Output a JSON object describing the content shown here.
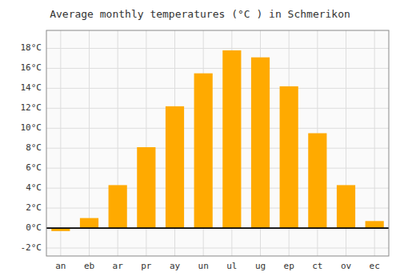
{
  "chart_data": {
    "type": "bar",
    "title": "Average monthly temperatures (°C ) in Schmerikon",
    "categories": [
      "an",
      "eb",
      "ar",
      "pr",
      "ay",
      "un",
      "ul",
      "ug",
      "ep",
      "ct",
      "ov",
      "ec"
    ],
    "values": [
      -0.3,
      1.0,
      4.3,
      8.1,
      12.2,
      15.5,
      17.8,
      17.1,
      14.2,
      9.5,
      4.3,
      0.7
    ],
    "color": "#FFAA00",
    "ylim": [
      -2.8,
      19.8
    ],
    "yticks": [
      {
        "value": -2,
        "label": "-2°C"
      },
      {
        "value": 0,
        "label": "0°C"
      },
      {
        "value": 2,
        "label": "2°C"
      },
      {
        "value": 4,
        "label": "4°C"
      },
      {
        "value": 6,
        "label": "6°C"
      },
      {
        "value": 8,
        "label": "8°C"
      },
      {
        "value": 10,
        "label": "10°C"
      },
      {
        "value": 12,
        "label": "12°C"
      },
      {
        "value": 14,
        "label": "14°C"
      },
      {
        "value": 16,
        "label": "16°C"
      },
      {
        "value": 18,
        "label": "18°C"
      }
    ],
    "grid": true
  }
}
